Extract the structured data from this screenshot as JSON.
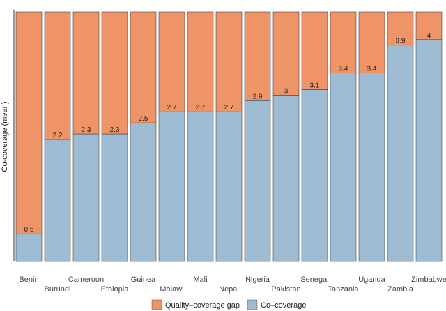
{
  "chart_data": {
    "type": "bar",
    "stacked": true,
    "title": "",
    "xlabel": "",
    "ylabel": "Co-coverage (mean)",
    "ylim": [
      0,
      4.5
    ],
    "categories": [
      "Benin",
      "Burundi",
      "Cameroon",
      "Ethiopia",
      "Guinea",
      "Malawi",
      "Mali",
      "Nepal",
      "Nigeria",
      "Pakistan",
      "Senegal",
      "Tanzania",
      "Uganda",
      "Zambia",
      "Zimbabwe"
    ],
    "series": [
      {
        "name": "Co-coverage",
        "color": "#9dbcd4",
        "values": [
          0.5,
          2.2,
          2.3,
          2.3,
          2.5,
          2.7,
          2.7,
          2.7,
          2.9,
          3,
          3.1,
          3.4,
          3.4,
          3.9,
          4
        ]
      },
      {
        "name": "Quality–coverage gap",
        "color": "#ee9466",
        "values": [
          4.0,
          2.3,
          2.2,
          2.2,
          2.0,
          1.8,
          1.8,
          1.8,
          1.6,
          1.5,
          1.4,
          1.1,
          1.1,
          0.6,
          0.5
        ]
      }
    ],
    "data_labels": [
      "0.5",
      "2.2",
      "2.3",
      "2.3",
      "2.5",
      "2.7",
      "2.7",
      "2.7",
      "2.9",
      "3",
      "3.1",
      "3.4",
      "3.4",
      "3.9",
      "4"
    ],
    "legend": {
      "position": "bottom",
      "entries": [
        "Quality–coverage gap",
        "Co–coverage"
      ]
    },
    "grid": false
  }
}
